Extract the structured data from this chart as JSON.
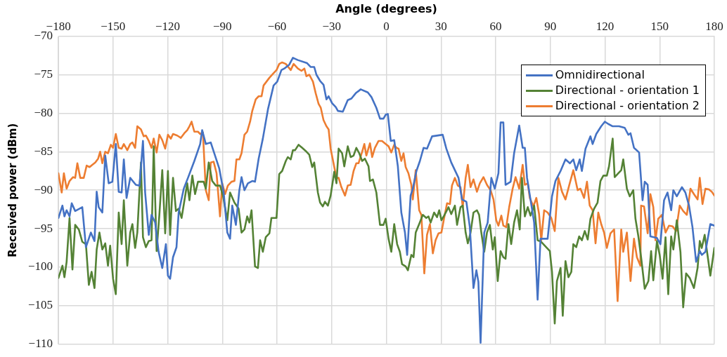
{
  "chart_data": {
    "type": "line",
    "xlabel": "Angle (degrees)",
    "ylabel": "Received power (dBm)",
    "xlim": [
      -180,
      180
    ],
    "xticks": [
      -180,
      -150,
      -120,
      -90,
      -60,
      -30,
      0,
      30,
      60,
      90,
      120,
      150,
      180
    ],
    "ylim": [
      -110,
      -70
    ],
    "yticks": [
      -110,
      -105,
      -100,
      -95,
      -90,
      -85,
      -80,
      -75,
      -70
    ],
    "grid": true,
    "legend": "top right",
    "marker": "none",
    "line_style": "solid",
    "series": [
      {
        "name": "Omnidirectional",
        "color": "#4472c4",
        "x": [
          -180,
          -177.8,
          -176.7,
          -175.5,
          -173.9,
          -172.7,
          -170.8,
          -166.9,
          -164.9,
          -162.2,
          -160.2,
          -159,
          -157.9,
          -155.9,
          -154.3,
          -152.4,
          -150.4,
          -148.5,
          -146.9,
          -145.3,
          -144.1,
          -142.6,
          -140.6,
          -137.5,
          -135.5,
          -133.6,
          -132.4,
          -130.4,
          -128.9,
          -126.9,
          -125,
          -123,
          -121,
          -119.9,
          -118.7,
          -117.1,
          -115.2,
          -114,
          -111.2,
          -108.9,
          -105.4,
          -102.2,
          -101.1,
          -99.1,
          -96.4,
          -91.7,
          -89.3,
          -87.3,
          -85.8,
          -84.6,
          -82.6,
          -80.7,
          -79.5,
          -77.9,
          -76,
          -73.6,
          -72.1,
          -70.1,
          -67.8,
          -65,
          -61.9,
          -59.9,
          -57.6,
          -56,
          -53.3,
          -51.3,
          -48.6,
          -43.5,
          -41.5,
          -39.6,
          -38.4,
          -36.4,
          -34.5,
          -32.9,
          -31.7,
          -29.8,
          -27.8,
          -26.6,
          -23.9,
          -21.2,
          -19.2,
          -16.8,
          -14.1,
          -10.2,
          -8.2,
          -5.5,
          -3.5,
          -1.6,
          -0.4,
          0.8,
          2.4,
          4.3,
          6.3,
          8.2,
          10.2,
          11.4,
          13.3,
          14.5,
          16.5,
          18.4,
          20.4,
          22.3,
          25.1,
          30.9,
          32.9,
          35.6,
          39.6,
          41.5,
          43.9,
          45.8,
          47.8,
          49.4,
          50.5,
          51.7,
          53.7,
          55.6,
          57.6,
          59.5,
          61.5,
          62.7,
          64.2,
          65.4,
          68.2,
          70.1,
          72.9,
          74.8,
          76,
          77.2,
          79.1,
          81.1,
          83,
          84.6,
          88.5,
          90.9,
          92.8,
          95.6,
          98.3,
          100.7,
          102.6,
          104.2,
          106.1,
          107.3,
          109.3,
          112,
          113.2,
          115.2,
          117.9,
          119.9,
          121.8,
          124.2,
          127.7,
          130.8,
          132.8,
          134,
          135.9,
          138.7,
          140.6,
          141.8,
          143.4,
          144.9,
          148.5,
          150.4,
          152.4,
          154.3,
          156.3,
          157.5,
          159.4,
          162.2,
          164.1,
          166.1,
          168,
          170,
          172,
          173.1,
          175.1,
          177.8,
          180
        ],
        "values": [
          -93.6,
          -92,
          -93.4,
          -92.6,
          -93.4,
          -91.7,
          -92.7,
          -92.2,
          -97.4,
          -95.5,
          -96.6,
          -90.2,
          -92.2,
          -92.9,
          -85.5,
          -89.1,
          -88.9,
          -84,
          -90.2,
          -90.3,
          -86,
          -91,
          -88.4,
          -89.3,
          -89.4,
          -83.6,
          -90.3,
          -95.8,
          -93.2,
          -94.2,
          -98,
          -100.1,
          -97,
          -101.1,
          -101.5,
          -98.7,
          -97.4,
          -92.9,
          -89.8,
          -88.4,
          -86.2,
          -84,
          -82.2,
          -84,
          -83.8,
          -87.2,
          -90.3,
          -95.5,
          -96.3,
          -92,
          -94.5,
          -90,
          -88.3,
          -90,
          -89.1,
          -88.8,
          -88.9,
          -85.9,
          -83.3,
          -79.5,
          -76.4,
          -75.9,
          -74.4,
          -74.2,
          -73.7,
          -72.8,
          -73.1,
          -73.5,
          -74,
          -74,
          -75,
          -75.8,
          -76.3,
          -78.2,
          -77.8,
          -78.7,
          -79.2,
          -79.7,
          -79.8,
          -78.3,
          -78.1,
          -77.4,
          -76.9,
          -77.3,
          -77.9,
          -79.3,
          -80.7,
          -80.7,
          -80.2,
          -80.1,
          -83.6,
          -83.5,
          -86.9,
          -92.9,
          -95.5,
          -98.4,
          -90.7,
          -89.8,
          -87.5,
          -86.2,
          -84.5,
          -84.6,
          -83,
          -82.8,
          -84.6,
          -86.4,
          -88.4,
          -91.2,
          -91.5,
          -94.8,
          -102.7,
          -100.4,
          -101.9,
          -109.8,
          -95.5,
          -94.2,
          -88.4,
          -89.8,
          -87.8,
          -81.2,
          -81.2,
          -89.3,
          -88.9,
          -85.2,
          -81.6,
          -84.5,
          -84.5,
          -88.4,
          -91.2,
          -94.2,
          -104.2,
          -96.3,
          -96.3,
          -90.8,
          -88.8,
          -87.5,
          -86,
          -86.5,
          -86,
          -87.4,
          -86,
          -87.5,
          -84.6,
          -83,
          -84,
          -82.7,
          -81.7,
          -81.1,
          -81.4,
          -81.7,
          -81.7,
          -81.9,
          -82.8,
          -82.6,
          -84.5,
          -85.1,
          -91.3,
          -88.9,
          -89.3,
          -96,
          -96.2,
          -97,
          -91.3,
          -90.3,
          -92.6,
          -90,
          -90.8,
          -89.6,
          -90.3,
          -92,
          -94.8,
          -99.3,
          -97.9,
          -98.4,
          -98,
          -94.4,
          -94.6
        ]
      },
      {
        "name": "Directional - orientation 1",
        "color": "#548235",
        "x": [
          -180,
          -177.8,
          -176.7,
          -175.5,
          -173.9,
          -172.3,
          -170.8,
          -168.8,
          -166.9,
          -164.9,
          -163.3,
          -161.8,
          -160.2,
          -159,
          -157.5,
          -155.9,
          -154.3,
          -152.8,
          -151.6,
          -150,
          -148.5,
          -146.9,
          -145.3,
          -144.1,
          -142.2,
          -140.6,
          -139.4,
          -137.9,
          -136.7,
          -134.7,
          -133.6,
          -132,
          -130.4,
          -128.9,
          -127.7,
          -126.1,
          -124.6,
          -123,
          -121.4,
          -119.9,
          -118.7,
          -117.1,
          -115.5,
          -114,
          -112.4,
          -109.3,
          -108.1,
          -106.5,
          -105,
          -103.4,
          -100.3,
          -99.1,
          -97.5,
          -95.6,
          -93.6,
          -91.3,
          -89.7,
          -87.3,
          -85.8,
          -83.4,
          -81.1,
          -79.5,
          -77.9,
          -76.4,
          -75.2,
          -74,
          -72.1,
          -70.5,
          -69.3,
          -67.8,
          -66.2,
          -64.2,
          -63.1,
          -60.3,
          -58.8,
          -57.2,
          -55.2,
          -54.1,
          -52.5,
          -51.3,
          -50.1,
          -48.2,
          -46.2,
          -44.3,
          -42.3,
          -40.7,
          -39.6,
          -37.6,
          -36.4,
          -34.9,
          -33.7,
          -32.1,
          -30.6,
          -28.6,
          -27.4,
          -26.2,
          -24.3,
          -23.1,
          -21.2,
          -19.6,
          -18,
          -16.5,
          -14.9,
          -13.3,
          -11.8,
          -9.8,
          -9,
          -7.4,
          -5.5,
          -3.5,
          -1.6,
          -0.4,
          1.2,
          2.7,
          4.3,
          5.9,
          7.4,
          8.6,
          10.6,
          11.8,
          13.7,
          14.9,
          16.1,
          18,
          20,
          21.9,
          23.1,
          24.3,
          26.2,
          27.8,
          29,
          30.2,
          31.7,
          34.1,
          35.6,
          37.6,
          38.8,
          40.7,
          41.9,
          43.5,
          44.7,
          46.2,
          47.8,
          49.7,
          50.9,
          52.1,
          53.7,
          55.2,
          56.8,
          58.4,
          59.5,
          61.1,
          62.7,
          64.2,
          65.4,
          67,
          68.5,
          70.1,
          71.7,
          73.2,
          74.4,
          76,
          77.6,
          79.1,
          81.1,
          83,
          85,
          87.7,
          89.7,
          90.9,
          92.4,
          93.6,
          95.6,
          96.8,
          98.3,
          99.9,
          101.5,
          102.6,
          104.2,
          105.8,
          107.3,
          108.9,
          110.5,
          112,
          114,
          115.9,
          117.5,
          119.1,
          121,
          122.2,
          124.2,
          125.3,
          126.9,
          128.9,
          130,
          132,
          133.6,
          135.5,
          136.7,
          138.3,
          139.8,
          141.8,
          143.8,
          145.3,
          146.5,
          148.5,
          150,
          151.6,
          153.2,
          154.7,
          156.3,
          157.5,
          159.4,
          161.4,
          162.9,
          164.5,
          166.5,
          168.8,
          170.8,
          172,
          173.1,
          174.7,
          176.3,
          177.8,
          180
        ],
        "values": [
          -101.4,
          -99.8,
          -101.3,
          -99.3,
          -93.6,
          -100.3,
          -94.5,
          -95.1,
          -96.7,
          -97,
          -102.3,
          -100.6,
          -102.7,
          -97.7,
          -95.5,
          -97.7,
          -96.9,
          -99.8,
          -97.2,
          -101.5,
          -103.5,
          -92.9,
          -97,
          -91.3,
          -99.8,
          -95.5,
          -94.4,
          -97.5,
          -95.5,
          -86.4,
          -96.1,
          -97.4,
          -96.6,
          -96.5,
          -84.3,
          -97.9,
          -93.2,
          -87.4,
          -95.6,
          -87.5,
          -95.8,
          -88.4,
          -92.7,
          -92.4,
          -93.6,
          -89.1,
          -91.3,
          -88.1,
          -90.5,
          -88.9,
          -88.9,
          -89.8,
          -86.4,
          -88.8,
          -89.4,
          -89.4,
          -90.7,
          -93.9,
          -90.3,
          -91.6,
          -92.4,
          -95.5,
          -95.1,
          -93.4,
          -94.2,
          -92.6,
          -99.9,
          -100.1,
          -96.5,
          -98,
          -96.1,
          -95.6,
          -93.6,
          -93.6,
          -87.9,
          -87.5,
          -86.2,
          -85.7,
          -86,
          -84.8,
          -84.8,
          -84.1,
          -84.5,
          -84.9,
          -85.4,
          -87,
          -86.4,
          -90.3,
          -91.6,
          -92.1,
          -91.5,
          -92,
          -90.7,
          -87.6,
          -89.1,
          -84.6,
          -85.2,
          -86.9,
          -84.3,
          -85.7,
          -85.5,
          -84.5,
          -85.2,
          -86.2,
          -85.9,
          -86.9,
          -88.8,
          -88.6,
          -90.3,
          -94.5,
          -94.5,
          -93.7,
          -96.3,
          -98,
          -94.4,
          -97,
          -98,
          -99.6,
          -99.9,
          -100.4,
          -98.4,
          -98.7,
          -95.5,
          -94.4,
          -93.2,
          -93.6,
          -93.4,
          -94.2,
          -92.9,
          -93.5,
          -92.6,
          -93.9,
          -93.3,
          -92.2,
          -93.1,
          -92,
          -94.5,
          -92.2,
          -92,
          -95.5,
          -96.9,
          -95.5,
          -92.9,
          -92.6,
          -93.2,
          -95.5,
          -98,
          -95.5,
          -94.5,
          -97.7,
          -96.1,
          -101.8,
          -97.9,
          -98.7,
          -98.9,
          -94.4,
          -97,
          -94.2,
          -92.6,
          -95.1,
          -88.4,
          -93.4,
          -92.2,
          -93.3,
          -92,
          -96.5,
          -96.7,
          -97.4,
          -97.9,
          -100.6,
          -107.3,
          -101.8,
          -100.1,
          -106.3,
          -99.2,
          -101.3,
          -100.6,
          -97,
          -97.4,
          -96,
          -96.5,
          -95.3,
          -96.4,
          -93.7,
          -92.4,
          -91.6,
          -88.8,
          -88.1,
          -88.1,
          -86.9,
          -83.3,
          -88.3,
          -87.9,
          -87.4,
          -86,
          -89.8,
          -90.8,
          -90,
          -93.7,
          -96,
          -98.7,
          -102.8,
          -101.8,
          -97.9,
          -101.7,
          -96.6,
          -98.4,
          -101.5,
          -96.1,
          -103.5,
          -96,
          -97.7,
          -93.9,
          -98,
          -105.2,
          -100.8,
          -101.4,
          -102.7,
          -100.1,
          -96.6,
          -97.5,
          -95.8,
          -98.5,
          -101.1,
          -97.5
        ]
      },
      {
        "name": "Directional - orientation 2",
        "color": "#ed7d31",
        "x": [
          -180,
          -178.2,
          -177,
          -175.5,
          -173.9,
          -172,
          -170.8,
          -169.6,
          -168,
          -166.1,
          -164.5,
          -162.9,
          -161.4,
          -159.8,
          -158.2,
          -157.1,
          -155.9,
          -154.3,
          -152.8,
          -151.2,
          -150,
          -148.5,
          -146.9,
          -145.3,
          -144.1,
          -142.2,
          -140.6,
          -139.4,
          -137.9,
          -136.7,
          -134.7,
          -133.2,
          -132,
          -130.4,
          -128.9,
          -127.7,
          -126.1,
          -124.6,
          -123,
          -121.4,
          -119.9,
          -118.3,
          -117.1,
          -114.8,
          -112.8,
          -110.9,
          -109.3,
          -108.1,
          -106.9,
          -105.4,
          -103.4,
          -102.2,
          -100.7,
          -99.1,
          -97.5,
          -96.4,
          -94.8,
          -93.2,
          -91.3,
          -90.1,
          -88.5,
          -87,
          -85,
          -83.4,
          -82.3,
          -80.7,
          -79.5,
          -77.9,
          -76.4,
          -74.8,
          -73.6,
          -71.7,
          -70.1,
          -68.5,
          -67.4,
          -65.8,
          -64.2,
          -62.3,
          -60.3,
          -58.8,
          -57.2,
          -55.2,
          -52.5,
          -50.9,
          -48.6,
          -46.6,
          -45,
          -43.9,
          -42.3,
          -40.3,
          -38.8,
          -37.2,
          -36,
          -34.5,
          -32.9,
          -31.7,
          -30.6,
          -29,
          -27.4,
          -26.2,
          -24.7,
          -22.7,
          -21.2,
          -19.6,
          -18,
          -16.5,
          -15.3,
          -13.3,
          -12.1,
          -11,
          -9,
          -7.8,
          -6.3,
          -4.3,
          -2.4,
          -0.4,
          1.2,
          2.7,
          4.3,
          5.5,
          6.7,
          8.2,
          9.4,
          10.6,
          12.1,
          13.7,
          14.5,
          16.1,
          18,
          19.2,
          20.8,
          22.3,
          23.9,
          25.5,
          27,
          28.6,
          30.2,
          31.7,
          33.3,
          34.9,
          36,
          37.6,
          39.2,
          40.7,
          41.9,
          43.5,
          44.7,
          46.2,
          47.8,
          49.7,
          51.3,
          53.3,
          55.2,
          57.2,
          58.8,
          60.3,
          61.5,
          63.1,
          64.2,
          65.8,
          67.4,
          69.3,
          70.9,
          72.9,
          74.8,
          76,
          77.6,
          78.7,
          80.7,
          82.3,
          83.8,
          85,
          86.6,
          88.5,
          90.5,
          92.4,
          94.4,
          96.4,
          98.3,
          100.3,
          102.6,
          105,
          106.5,
          108.5,
          110.1,
          111.6,
          113.2,
          114.8,
          116.3,
          117.9,
          119.5,
          121,
          123,
          125,
          126.9,
          128.9,
          130,
          132,
          134,
          135.9,
          137.5,
          139.4,
          139.8,
          141.4,
          143.4,
          144.9,
          146.5,
          147.7,
          149.2,
          151.2,
          153.2,
          155.1,
          157.1,
          159,
          161,
          162.9,
          164.9,
          166.9,
          168.8,
          170.8,
          172,
          173.5,
          175.1,
          177,
          178.6,
          180
        ],
        "values": [
          -87.8,
          -90.3,
          -87.8,
          -89.8,
          -88.8,
          -88.3,
          -88.4,
          -86.5,
          -88.4,
          -88.4,
          -86.8,
          -87,
          -86.7,
          -86.4,
          -85.9,
          -85,
          -86.5,
          -85,
          -85.2,
          -84.1,
          -84.5,
          -82.7,
          -84.5,
          -84.6,
          -84,
          -84.8,
          -84,
          -83.8,
          -84.5,
          -81.7,
          -82.1,
          -83,
          -82.9,
          -83.6,
          -84.5,
          -83.3,
          -85.1,
          -82.8,
          -83.5,
          -84.6,
          -82.8,
          -83.3,
          -82.7,
          -82.9,
          -83.2,
          -82.6,
          -82.2,
          -81.7,
          -81.1,
          -82.4,
          -82.4,
          -82.7,
          -82.5,
          -90,
          -91.3,
          -86.4,
          -86.3,
          -87.8,
          -93.4,
          -89.1,
          -90.5,
          -89.4,
          -88.9,
          -88.8,
          -86,
          -86,
          -85.2,
          -82.8,
          -82.4,
          -81.1,
          -79.7,
          -78.2,
          -77.8,
          -77.8,
          -76.4,
          -75.9,
          -75.4,
          -74.9,
          -74.4,
          -73.6,
          -73.4,
          -73.6,
          -74.4,
          -73.6,
          -74.2,
          -74.5,
          -74.2,
          -75.2,
          -75,
          -75.9,
          -77.4,
          -78.8,
          -79.3,
          -80.9,
          -81.7,
          -82.1,
          -84.6,
          -86.5,
          -88.4,
          -88.4,
          -89.6,
          -90.7,
          -89.4,
          -89.3,
          -87.5,
          -86.5,
          -86.5,
          -85,
          -84,
          -85.5,
          -83.9,
          -85.7,
          -84.5,
          -83.6,
          -83.6,
          -84,
          -84.3,
          -85.1,
          -84.1,
          -84.5,
          -84.6,
          -86.2,
          -85.2,
          -87,
          -87.8,
          -89.3,
          -91.2,
          -87.4,
          -92.6,
          -93.2,
          -100.8,
          -95.8,
          -94.4,
          -98.2,
          -96.5,
          -95.6,
          -95.5,
          -93.6,
          -91.7,
          -91.8,
          -89.4,
          -88.4,
          -89.4,
          -89.6,
          -92.2,
          -88.4,
          -86.7,
          -89.6,
          -88.6,
          -90.2,
          -89.1,
          -88.3,
          -89.3,
          -90,
          -91.2,
          -93.9,
          -94.6,
          -93.3,
          -94.6,
          -94.8,
          -92.2,
          -89.8,
          -88.3,
          -89.8,
          -86.7,
          -89.3,
          -89.1,
          -91,
          -92.1,
          -91,
          -93.1,
          -96.5,
          -92.6,
          -92.9,
          -93.6,
          -95.3,
          -88.4,
          -90.2,
          -91.2,
          -89.4,
          -87.4,
          -90,
          -89.8,
          -91,
          -88.9,
          -92,
          -92.6,
          -96.9,
          -92.9,
          -94.4,
          -95.5,
          -97.5,
          -95.6,
          -95.1,
          -104.4,
          -95.1,
          -98,
          -95.5,
          -101.8,
          -96.3,
          -98.7,
          -99.8,
          -92,
          -92.1,
          -95.6,
          -90.5,
          -92.2,
          -96.5,
          -93.7,
          -93.2,
          -95.5,
          -94.6,
          -94.7,
          -95.3,
          -92,
          -92.7,
          -93.2,
          -89.8,
          -90.5,
          -91.2,
          -88.4,
          -91.8,
          -89.8,
          -89.9,
          -90.2,
          -90.7
        ]
      }
    ]
  }
}
